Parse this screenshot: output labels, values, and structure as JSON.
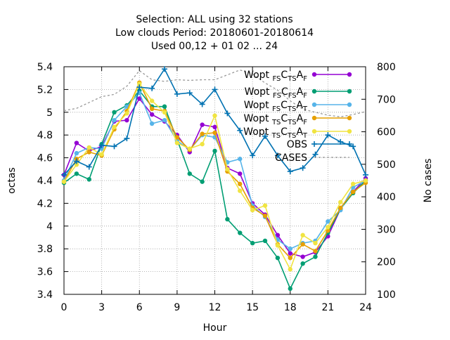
{
  "chart_data": {
    "type": "line",
    "title_lines": [
      "Selection: ALL using    32 stations",
      "Low clouds   Period: 20180601-20180614",
      "Used  00,12  + 01 02 ... 24"
    ],
    "xlabel": "Hour",
    "ylabel": "octas",
    "y2label": "No cases",
    "xlim": [
      0,
      24
    ],
    "ylim": [
      3.4,
      5.4
    ],
    "y2lim": [
      100,
      800
    ],
    "xticks": [
      "0",
      "3",
      "6",
      "9",
      "12",
      "15",
      "18",
      "21",
      "24"
    ],
    "yticks": [
      "3.4",
      "3.6",
      "3.8",
      "4",
      "4.2",
      "4.4",
      "4.6",
      "4.8",
      "5",
      "5.2",
      "5.4"
    ],
    "y2ticks": [
      "100",
      "200",
      "300",
      "400",
      "500",
      "600",
      "700",
      "800"
    ],
    "grid": true,
    "legend_position": "top-right",
    "x": [
      0,
      1,
      2,
      3,
      4,
      5,
      6,
      7,
      8,
      9,
      10,
      11,
      12,
      13,
      14,
      15,
      16,
      17,
      18,
      19,
      20,
      21,
      22,
      23,
      24
    ],
    "series": [
      {
        "legend": {
          "base": "Wopt",
          "s1": "FS",
          "c": "C",
          "s2": "TS",
          "a": "A",
          "s3": "F"
        },
        "color": "#9400d3",
        "marker": "dot",
        "values": [
          4.45,
          4.73,
          4.66,
          4.7,
          4.92,
          4.93,
          5.12,
          4.98,
          4.92,
          4.8,
          4.65,
          4.89,
          4.87,
          4.51,
          4.46,
          4.2,
          4.1,
          3.92,
          3.76,
          3.73,
          3.77,
          3.91,
          4.15,
          4.3,
          4.42
        ]
      },
      {
        "legend": {
          "base": "Wopt",
          "s1": "FS",
          "c": "C",
          "s2": "FS",
          "a": "A",
          "s3": "F"
        },
        "color": "#009e73",
        "marker": "dot",
        "values": [
          4.38,
          4.46,
          4.41,
          4.72,
          5.0,
          5.06,
          5.19,
          5.05,
          5.05,
          4.76,
          4.46,
          4.39,
          4.66,
          4.06,
          3.94,
          3.85,
          3.87,
          3.72,
          3.45,
          3.67,
          3.73,
          3.94,
          4.15,
          4.29,
          4.4
        ]
      },
      {
        "legend": {
          "base": "Wopt",
          "s1": "FS",
          "c": "C",
          "s2": "TS",
          "a": "A",
          "s3": "T"
        },
        "color": "#56b4e9",
        "marker": "dot",
        "values": [
          4.4,
          4.64,
          4.69,
          4.68,
          4.93,
          5.05,
          5.17,
          4.9,
          4.93,
          4.75,
          4.67,
          4.8,
          4.78,
          4.56,
          4.59,
          4.18,
          4.08,
          3.88,
          3.8,
          3.85,
          3.87,
          4.04,
          4.14,
          4.34,
          4.4
        ]
      },
      {
        "legend": {
          "base": "Wopt",
          "s1": "TS",
          "c": "C",
          "s2": "TS",
          "a": "A",
          "s3": "F"
        },
        "color": "#e69f00",
        "marker": "dot",
        "values": [
          4.39,
          4.59,
          4.65,
          4.62,
          4.85,
          5.01,
          5.26,
          5.03,
          5.01,
          4.78,
          4.67,
          4.81,
          4.82,
          4.48,
          4.37,
          4.16,
          4.09,
          3.84,
          3.72,
          3.84,
          3.78,
          3.96,
          4.16,
          4.3,
          4.38
        ]
      },
      {
        "legend": {
          "base": "Wopt",
          "s1": "TS",
          "c": "C",
          "s2": "TS",
          "a": "A",
          "s3": "T"
        },
        "color": "#f0e442",
        "marker": "dot",
        "values": [
          4.39,
          4.54,
          4.69,
          4.63,
          4.87,
          4.99,
          5.25,
          5.1,
          5.0,
          4.73,
          4.68,
          4.72,
          4.97,
          4.5,
          4.31,
          4.14,
          4.18,
          3.83,
          3.62,
          3.92,
          3.85,
          3.99,
          4.21,
          4.37,
          4.4
        ]
      },
      {
        "name": "OBS",
        "color": "#0072b2",
        "marker": "plus",
        "values": [
          4.45,
          4.57,
          4.52,
          4.71,
          4.7,
          4.77,
          5.22,
          5.21,
          5.38,
          5.16,
          5.17,
          5.07,
          5.2,
          4.99,
          4.84,
          4.62,
          4.79,
          4.62,
          4.48,
          4.51,
          4.63,
          4.8,
          4.74,
          4.7,
          4.45
        ]
      },
      {
        "name": "CASES",
        "color": "#999999",
        "marker": "none",
        "axis": "y2",
        "values": [
          665,
          672,
          690,
          708,
          715,
          740,
          788,
          760,
          755,
          760,
          758,
          760,
          760,
          775,
          790,
          778,
          750,
          728,
          695,
          670,
          660,
          651,
          646,
          653,
          662
        ]
      }
    ]
  }
}
